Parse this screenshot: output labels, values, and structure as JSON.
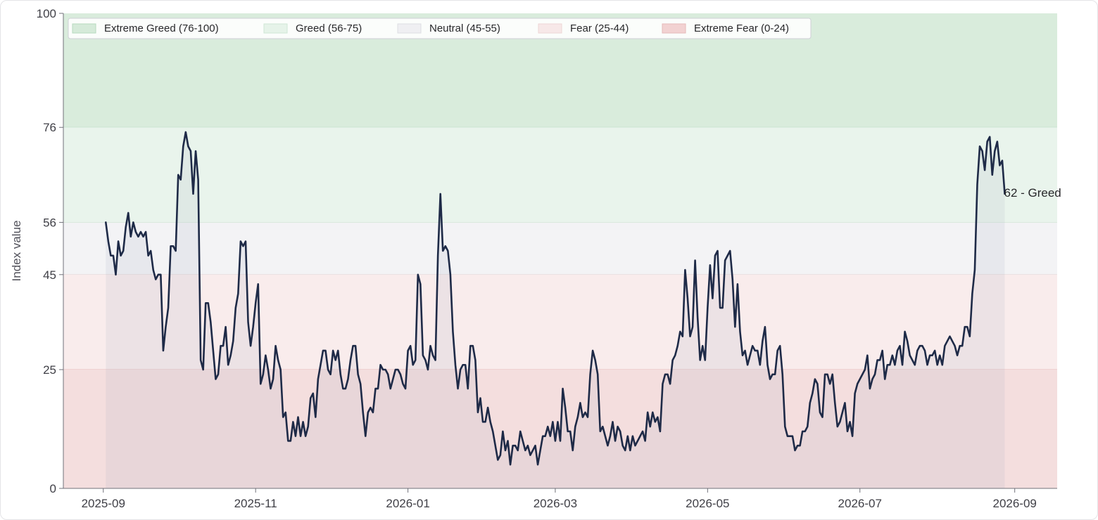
{
  "chart_data": {
    "type": "line",
    "title": "",
    "xlabel": "",
    "ylabel": "Index value",
    "ylim": [
      0,
      100
    ],
    "xlim": [
      "2025-08-16",
      "2026-09-18"
    ],
    "grid": false,
    "legend_position": "top-left",
    "y_ticks": [
      0,
      25,
      45,
      56,
      76,
      100
    ],
    "x_ticks": [
      "2025-09",
      "2025-11",
      "2026-01",
      "2026-03",
      "2026-05",
      "2026-07",
      "2026-09"
    ],
    "zones": [
      {
        "name": "Extreme Greed (76-100)",
        "from": 76,
        "to": 100,
        "color": "#d9ecdc"
      },
      {
        "name": "Greed (56-75)",
        "from": 56,
        "to": 76,
        "color": "#e9f4ec"
      },
      {
        "name": "Neutral (45-55)",
        "from": 45,
        "to": 56,
        "color": "#f3f3f5"
      },
      {
        "name": "Fear (25-44)",
        "from": 25,
        "to": 45,
        "color": "#f9ecec"
      },
      {
        "name": "Extreme Fear (0-24)",
        "from": 0,
        "to": 25,
        "color": "#f4dede"
      }
    ],
    "series": [
      {
        "line_color": "#1e2a47",
        "start_date": "2025-09-02",
        "step_days": 1,
        "values": [
          56,
          52,
          49,
          49,
          45,
          52,
          49,
          50,
          55,
          58,
          53,
          56,
          54,
          53,
          54,
          53,
          54,
          49,
          50,
          46,
          44,
          45,
          45,
          29,
          34,
          38,
          51,
          51,
          50,
          66,
          65,
          72,
          75,
          72,
          71,
          62,
          71,
          65,
          27,
          25,
          39,
          39,
          35,
          29,
          23,
          24,
          30,
          30,
          34,
          26,
          28,
          31,
          38,
          41,
          52,
          51,
          52,
          35,
          30,
          34,
          39,
          43,
          22,
          24,
          28,
          25,
          21,
          23,
          30,
          27,
          25,
          15,
          16,
          10,
          10,
          14,
          11,
          15,
          11,
          14,
          11,
          13,
          19,
          20,
          15,
          23,
          26,
          29,
          29,
          25,
          24,
          29,
          27,
          29,
          24,
          21,
          21,
          23,
          27,
          30,
          30,
          24,
          22,
          16,
          11,
          16,
          17,
          16,
          21,
          21,
          26,
          25,
          25,
          24,
          21,
          23,
          25,
          25,
          24,
          22,
          21,
          29,
          30,
          26,
          27,
          45,
          43,
          28,
          27,
          25,
          30,
          28,
          27,
          49,
          62,
          50,
          51,
          50,
          45,
          33,
          26,
          21,
          25,
          26,
          26,
          21,
          30,
          30,
          27,
          16,
          19,
          14,
          14,
          17,
          14,
          12,
          9,
          6,
          7,
          12,
          8,
          10,
          5,
          9,
          9,
          8,
          12,
          10,
          8,
          9,
          7,
          8,
          9,
          5,
          8,
          11,
          11,
          13,
          11,
          14,
          10,
          14,
          10,
          21,
          17,
          12,
          12,
          8,
          13,
          15,
          18,
          15,
          16,
          15,
          24,
          29,
          27,
          24,
          12,
          13,
          11,
          9,
          11,
          14,
          10,
          13,
          12,
          9,
          8,
          11,
          8,
          11,
          9,
          10,
          11,
          12,
          10,
          16,
          13,
          16,
          14,
          15,
          12,
          22,
          24,
          24,
          22,
          27,
          28,
          30,
          33,
          32,
          46,
          40,
          32,
          34,
          48,
          36,
          27,
          30,
          27,
          38,
          47,
          40,
          49,
          50,
          38,
          38,
          48,
          49,
          50,
          44,
          34,
          43,
          33,
          28,
          29,
          26,
          28,
          30,
          29,
          29,
          26,
          31,
          34,
          26,
          23,
          24,
          24,
          29,
          30,
          24,
          13,
          11,
          11,
          11,
          8,
          9,
          9,
          12,
          12,
          13,
          18,
          20,
          23,
          22,
          16,
          15,
          24,
          24,
          22,
          24,
          18,
          13,
          14,
          16,
          18,
          12,
          14,
          11,
          20,
          22,
          23,
          24,
          25,
          28,
          21,
          23,
          24,
          27,
          27,
          29,
          23,
          26,
          26,
          28,
          26,
          29,
          30,
          26,
          33,
          31,
          28,
          27,
          26,
          29,
          30,
          30,
          29,
          26,
          28,
          28,
          29,
          26,
          28,
          26,
          30,
          31,
          32,
          31,
          30,
          28,
          30,
          30,
          34,
          34,
          32,
          41,
          46,
          64,
          72,
          71,
          67,
          73,
          74,
          66,
          71,
          73,
          68,
          69,
          62
        ],
        "point_annotation": {
          "value": 62,
          "label": "62 - Greed"
        }
      }
    ]
  }
}
